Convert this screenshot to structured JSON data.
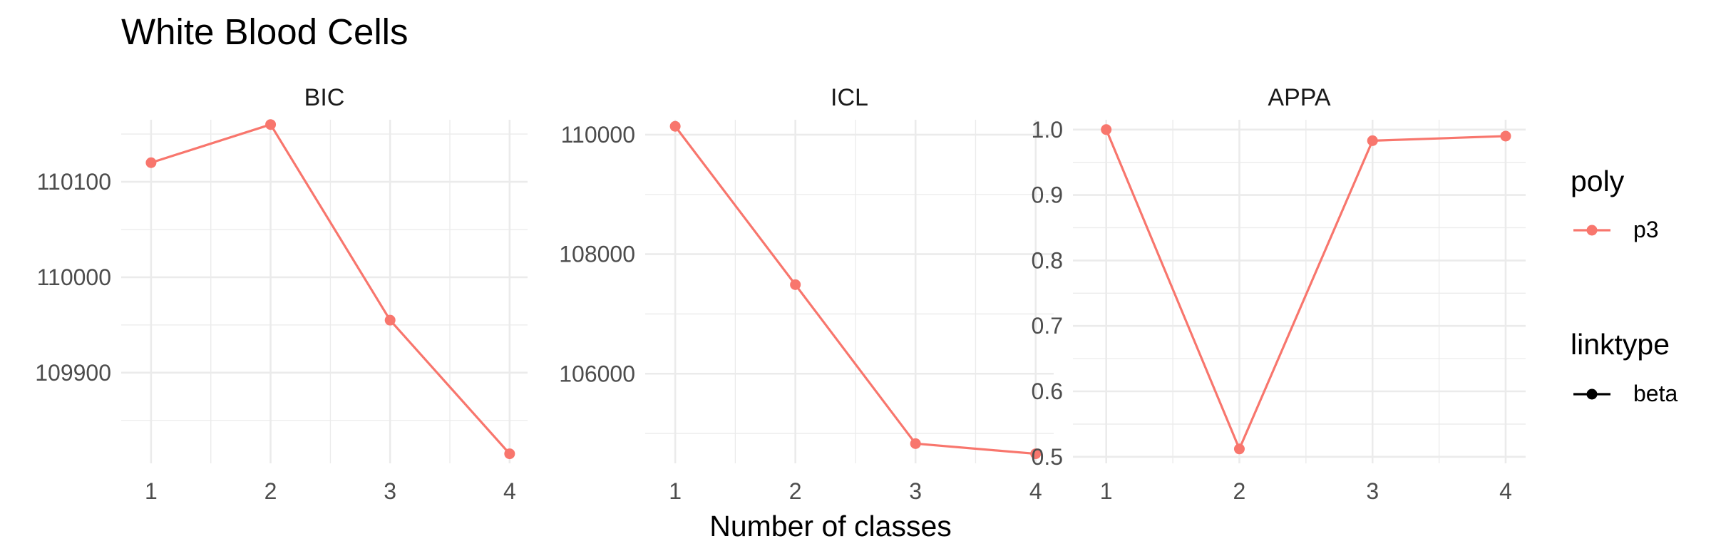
{
  "chart_data": {
    "type": "line",
    "title": "White Blood Cells",
    "xlabel": "Number of classes",
    "x": [
      1,
      2,
      3,
      4
    ],
    "x_ticks": [
      "1",
      "2",
      "3",
      "4"
    ],
    "panels": [
      {
        "name": "BIC",
        "ylim": [
          109805,
          110165
        ],
        "y_ticks": [
          109900,
          110000,
          110100
        ],
        "y_tick_labels": [
          "109900",
          "110000",
          "110100"
        ],
        "series": [
          {
            "name": "p3",
            "values": [
              110120,
              110160,
              109955,
              109815
            ]
          }
        ]
      },
      {
        "name": "ICL",
        "ylim": [
          104500,
          110250
        ],
        "y_ticks": [
          106000,
          108000,
          110000
        ],
        "y_tick_labels": [
          "106000",
          "108000",
          "110000"
        ],
        "series": [
          {
            "name": "p3",
            "values": [
              110140,
              107490,
              104830,
              104660
            ]
          }
        ]
      },
      {
        "name": "APPA",
        "ylim": [
          0.49,
          1.015
        ],
        "y_ticks": [
          0.5,
          0.6,
          0.7,
          0.8,
          0.9,
          1.0
        ],
        "y_tick_labels": [
          "0.5",
          "0.6",
          "0.7",
          "0.8",
          "0.9",
          "1.0"
        ],
        "series": [
          {
            "name": "p3",
            "values": [
              1.0,
              0.512,
              0.983,
              0.99
            ]
          }
        ]
      }
    ],
    "legends": [
      {
        "title": "poly",
        "entries": [
          {
            "label": "p3",
            "color": "#F8766D"
          }
        ]
      },
      {
        "title": "linktype",
        "entries": [
          {
            "label": "beta",
            "color": "#000000"
          }
        ]
      }
    ],
    "series_color": "#F8766D",
    "grid": true,
    "legend_position": "right"
  }
}
